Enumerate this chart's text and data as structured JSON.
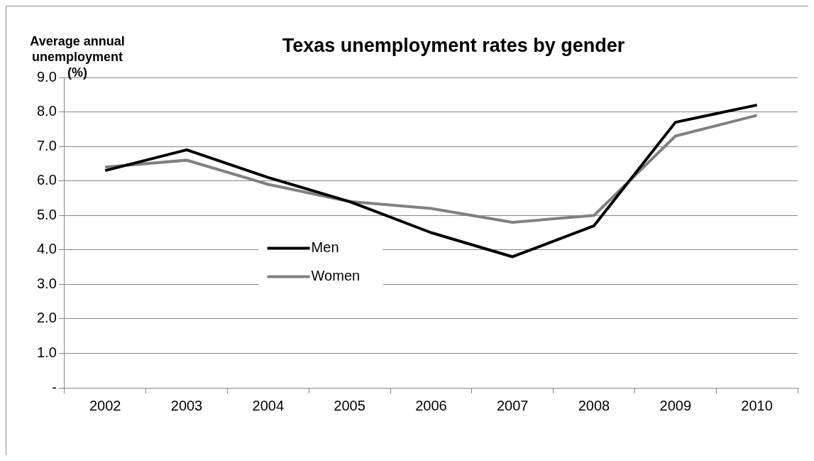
{
  "chart_data": {
    "type": "line",
    "title": "Texas unemployment rates by gender",
    "ylabel": "Average annual unemployment (%)",
    "categories": [
      "2002",
      "2003",
      "2004",
      "2005",
      "2006",
      "2007",
      "2008",
      "2009",
      "2010"
    ],
    "series": [
      {
        "name": "Men",
        "color": "#000000",
        "values": [
          6.3,
          6.9,
          6.1,
          5.4,
          4.5,
          3.8,
          4.7,
          7.7,
          8.2
        ]
      },
      {
        "name": "Women",
        "color": "#808080",
        "values": [
          6.4,
          6.6,
          5.9,
          5.4,
          5.2,
          4.8,
          5.0,
          7.3,
          7.9
        ]
      }
    ],
    "ylim": [
      0,
      9
    ],
    "yticks": [
      {
        "value": 0,
        "label": "-"
      },
      {
        "value": 1,
        "label": "1.0"
      },
      {
        "value": 2,
        "label": "2.0"
      },
      {
        "value": 3,
        "label": "3.0"
      },
      {
        "value": 4,
        "label": "4.0"
      },
      {
        "value": 5,
        "label": "5.0"
      },
      {
        "value": 6,
        "label": "6.0"
      },
      {
        "value": 7,
        "label": "7.0"
      },
      {
        "value": 8,
        "label": "8.0"
      },
      {
        "value": 9,
        "label": "9.0"
      }
    ],
    "grid": "y",
    "legend": "bottom left",
    "marker": "none",
    "line_style": "solid"
  }
}
